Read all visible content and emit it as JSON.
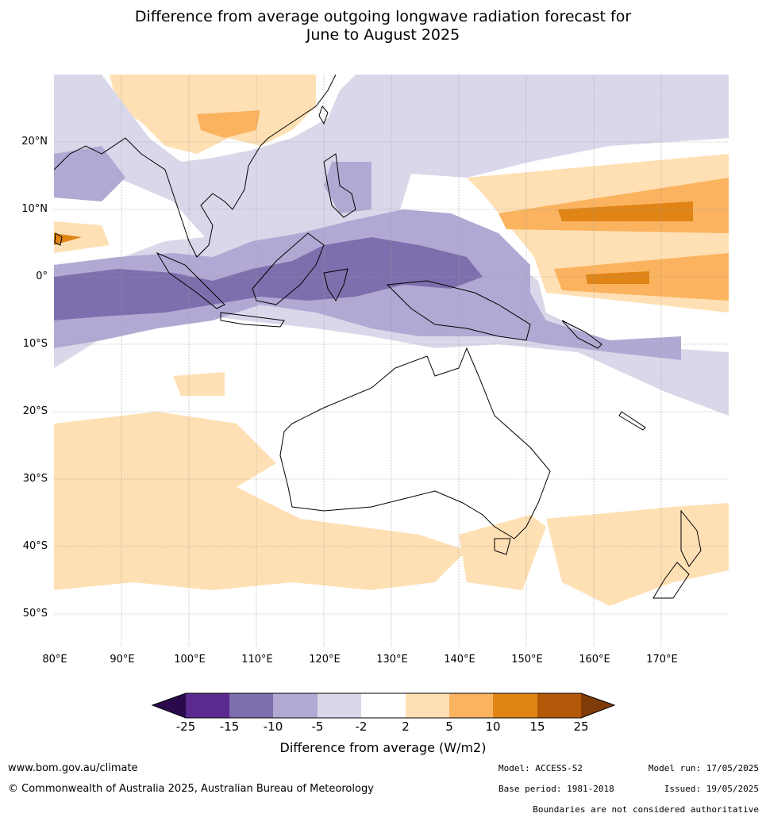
{
  "title": {
    "line1": "Difference from average outgoing longwave radiation forecast for",
    "line2": "June to August 2025"
  },
  "map": {
    "lat_labels": [
      "20°N",
      "10°N",
      "0°",
      "10°S",
      "20°S",
      "30°S",
      "40°S",
      "50°S"
    ],
    "lon_labels": [
      "80°E",
      "90°E",
      "100°E",
      "110°E",
      "120°E",
      "130°E",
      "140°E",
      "150°E",
      "160°E",
      "170°E"
    ],
    "ocean_color": "#ffffff",
    "land_outline_color": "#000000"
  },
  "colorbar": {
    "ticks": [
      "-25",
      "-15",
      "-10",
      "-5",
      "-2",
      "2",
      "5",
      "10",
      "15",
      "25"
    ],
    "colors": [
      "#2a0a4a",
      "#5a2a8e",
      "#7f6ead",
      "#b1a9d3",
      "#d9d8ea",
      "#ffffff",
      "#ffe0b4",
      "#fbb35f",
      "#e08416",
      "#b35808",
      "#7f3b08"
    ],
    "label": "Difference from average (W/m2)"
  },
  "footer": {
    "website": "www.bom.gov.au/climate",
    "copyright": "© Commonwealth of Australia 2025, Australian Bureau of Meteorology",
    "model": "Model: ACCESS-S2",
    "model_run": "Model run: 17/05/2025",
    "base_period": "Base period: 1981-2018",
    "issued": "Issued: 19/05/2025",
    "boundaries": "Boundaries are not considered authoritative"
  }
}
